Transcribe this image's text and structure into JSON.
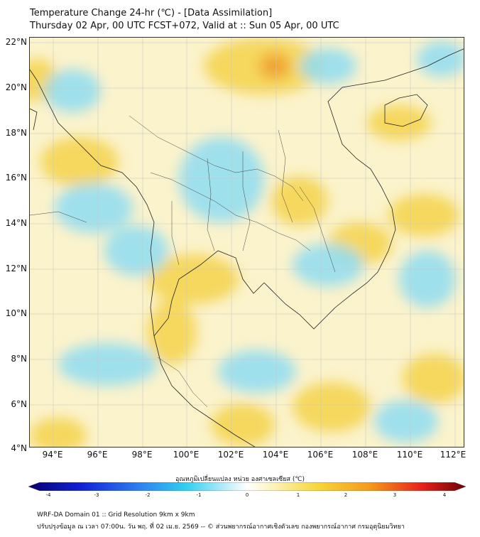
{
  "title": {
    "line1": "Temperature Change 24-hr (℃) - [Data Assimilation]",
    "line2": "Thursday 02 Apr, 00 UTC FCST+072, Valid at :: Sun 05 Apr, 00 UTC"
  },
  "map": {
    "lat_labels": [
      "22°N",
      "20°N",
      "18°N",
      "16°N",
      "14°N",
      "12°N",
      "10°N",
      "8°N",
      "6°N",
      "4°N"
    ],
    "lon_labels": [
      "94°E",
      "96°E",
      "98°E",
      "100°E",
      "102°E",
      "104°E",
      "106°E",
      "108°E",
      "110°E",
      "112°E"
    ],
    "background_color": "#fbf3cc",
    "warm_color": "#f5d24a",
    "strong_warm_color": "#f0a030",
    "cool_color": "#8edcf2"
  },
  "colorbar": {
    "title": "อุณหภูมิเปลี่ยนแปลง หน่วย องศาเซลเซียส (℃)",
    "ticks": [
      "-4",
      "-3",
      "-2",
      "-1",
      "0",
      "1",
      "2",
      "3",
      "4"
    ],
    "min": -4,
    "max": 4
  },
  "footer": {
    "line1": "WRF-DA Domain 01 :: Grid Resolution 9km x 9km",
    "line2": "ปรับปรุงข้อมูล ณ เวลา 07:00น. วัน พฤ. ที่ 02 เม.ย. 2569 -- © ส่วนพยากรณ์อากาศเชิงตัวเลข กองพยากรณ์อากาศ กรมอุตุนิยมวิทยา"
  }
}
